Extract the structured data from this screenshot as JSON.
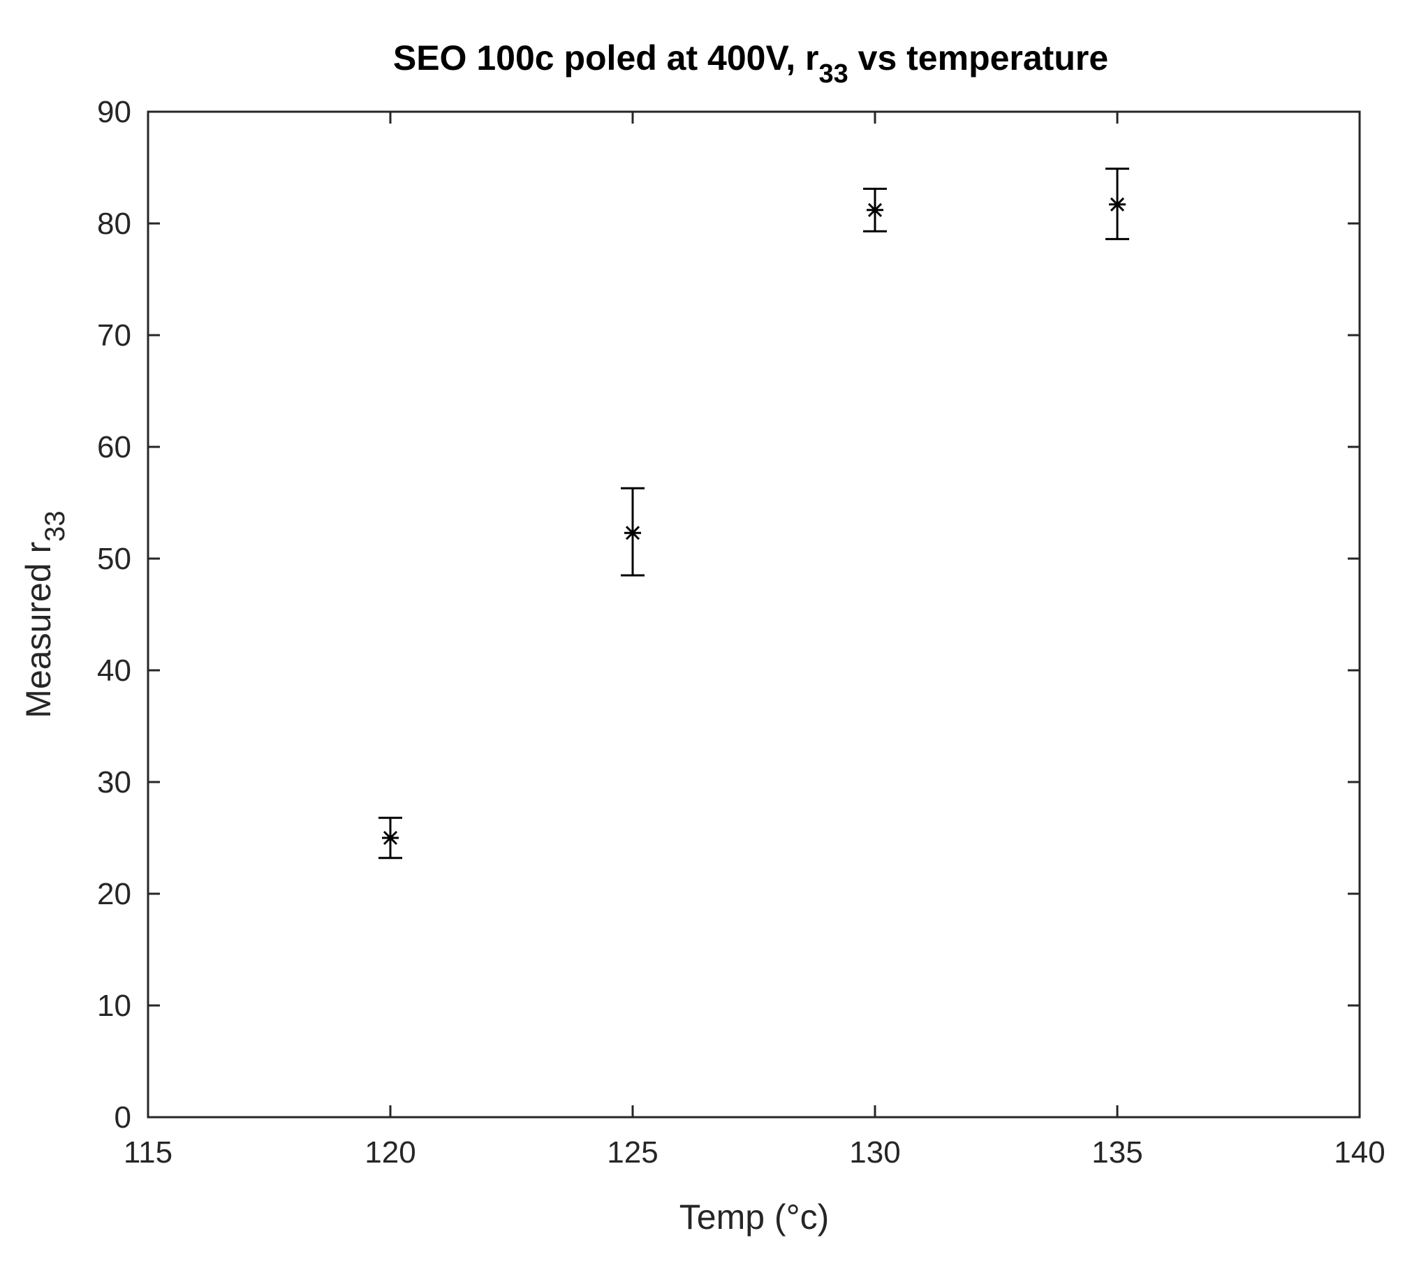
{
  "chart_data": {
    "type": "scatter",
    "title": {
      "main": "SEO 100c poled at 400V, r",
      "sub": "33",
      "tail": " vs temperature"
    },
    "xlabel": "Temp (°c)",
    "ylabel": {
      "main": "Measured r",
      "sub": "33"
    },
    "xlim": [
      115,
      140
    ],
    "ylim": [
      0,
      90
    ],
    "xticks": [
      115,
      120,
      125,
      130,
      135,
      140
    ],
    "yticks": [
      0,
      10,
      20,
      30,
      40,
      50,
      60,
      70,
      80,
      90
    ],
    "grid": false,
    "marker": "asterisk",
    "color": "#000000",
    "points": [
      {
        "x": 120,
        "y": 25.0,
        "err_low": 23.2,
        "err_high": 26.8
      },
      {
        "x": 125,
        "y": 52.3,
        "err_low": 48.5,
        "err_high": 56.3
      },
      {
        "x": 130,
        "y": 81.2,
        "err_low": 79.3,
        "err_high": 83.1
      },
      {
        "x": 135,
        "y": 81.7,
        "err_low": 78.6,
        "err_high": 84.9
      }
    ]
  }
}
